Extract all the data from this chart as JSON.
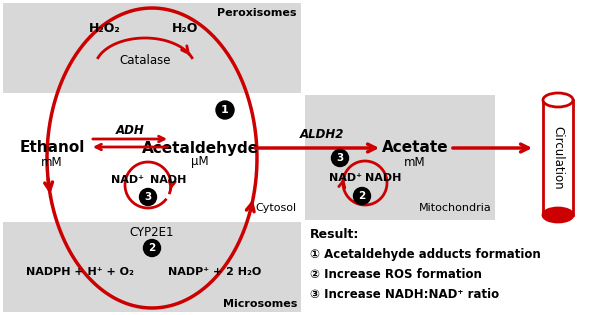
{
  "red": "#CC0000",
  "box_gray": "#d8d8d8",
  "peroxisomes_label": "Peroxisomes",
  "cytosol_label": "Cytosol",
  "microsomes_label": "Microsomes",
  "mitochondria_label": "Mitochondria",
  "circulation_label": "Circulation",
  "ethanol_label": "Ethanol",
  "ethanol_unit": "mM",
  "acetaldehyde_label": "Acetaldehyde",
  "acetaldehyde_unit": "μM",
  "acetate_label": "Acetate",
  "acetate_unit": "mM",
  "h2o2_label": "H₂O₂",
  "h2o_label": "H₂O",
  "catalase_label": "Catalase",
  "adh_label": "ADH",
  "aldh2_label": "ALDH2",
  "cyp2e1_label": "CYP2E1",
  "nad_label": "NAD⁺",
  "nadh_label": "NADH",
  "nad2_label": "NAD⁺",
  "nadh2_label": "NADH",
  "micro_left": "NADPH + H⁺ + O₂",
  "micro_right": "NADP⁺ + 2 H₂O",
  "result_title": "Result:",
  "result1": "① Acetaldehyde adducts formation",
  "result2": "② Increase ROS formation",
  "result3": "③ Increase NADH:NAD⁺ ratio"
}
